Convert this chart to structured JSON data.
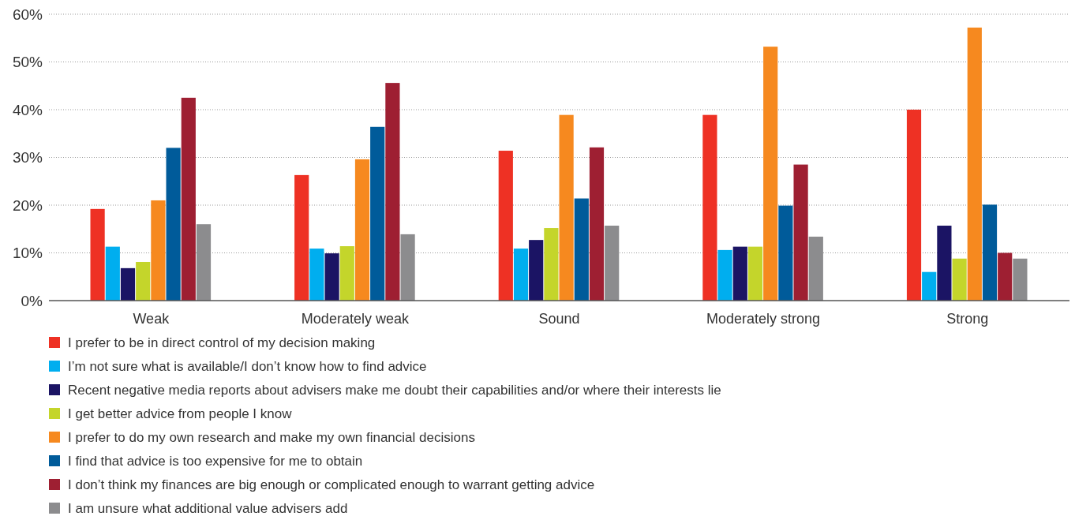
{
  "chart_data": {
    "type": "bar",
    "categories": [
      "Weak",
      "Moderately weak",
      "Sound",
      "Moderately strong",
      "Strong"
    ],
    "series": [
      {
        "name": "I prefer to be in direct control of my decision making",
        "color": "#ee3124",
        "values": [
          19.2,
          26.3,
          31.4,
          38.9,
          40
        ]
      },
      {
        "name": "I’m not sure what is available/I don’t know how to find advice",
        "color": "#00aeef",
        "values": [
          11.3,
          10.9,
          10.9,
          10.6,
          6
        ]
      },
      {
        "name": "Recent negative media reports about advisers make me doubt their capabilities and/or where their interests lie",
        "color": "#1b1464",
        "values": [
          6.8,
          9.9,
          12.7,
          11.3,
          15.7
        ]
      },
      {
        "name": "I get better advice from people I know",
        "color": "#c4d52b",
        "values": [
          8.1,
          11.4,
          15.2,
          11.3,
          8.8
        ]
      },
      {
        "name": "I prefer to do my own research and make my own financial decisions",
        "color": "#f6891f",
        "values": [
          21,
          29.6,
          38.9,
          53.2,
          57.2
        ]
      },
      {
        "name": "I find that advice is too expensive for me to obtain",
        "color": "#005b9a",
        "values": [
          32,
          36.4,
          21.4,
          19.9,
          20.1
        ]
      },
      {
        "name": "I don’t think my finances are big enough or complicated enough to warrant getting advice",
        "color": "#9e1f32",
        "values": [
          42.5,
          45.6,
          32.1,
          28.5,
          10
        ]
      },
      {
        "name": "I am unsure what additional value advisers add",
        "color": "#8c8c8e",
        "values": [
          16,
          13.9,
          15.7,
          13.4,
          8.8
        ]
      }
    ],
    "ylim": [
      0,
      60
    ],
    "yticks": [
      {
        "value": 0,
        "label": "0%"
      },
      {
        "value": 10,
        "label": "10%"
      },
      {
        "value": 20,
        "label": "20%"
      },
      {
        "value": 30,
        "label": "30%"
      },
      {
        "value": 40,
        "label": "40%"
      },
      {
        "value": 50,
        "label": "50%"
      },
      {
        "value": 60,
        "label": "60%"
      }
    ],
    "grid": "y",
    "legend": "bottom"
  }
}
